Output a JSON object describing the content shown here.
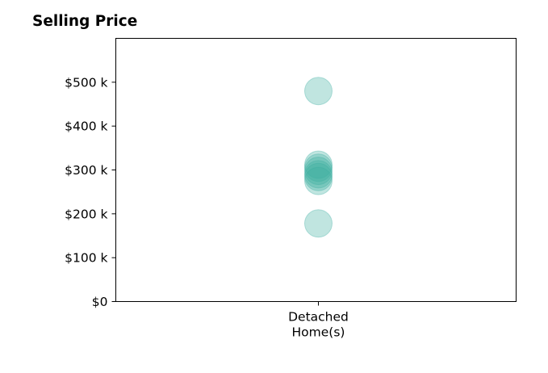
{
  "chart_data": {
    "type": "scatter",
    "title": "Selling Price",
    "xlabel": "",
    "ylabel": "",
    "categories": [
      "Detached\nHome(s)"
    ],
    "ylim": [
      0,
      600000
    ],
    "yticks": [
      0,
      100000,
      200000,
      300000,
      400000,
      500000
    ],
    "ytick_labels": [
      "$0",
      "$100 k",
      "$200 k",
      "$300 k",
      "$400 k",
      "$500 k"
    ],
    "grid": false,
    "points": [
      {
        "category": 0,
        "y": 480000
      },
      {
        "category": 0,
        "y": 312000
      },
      {
        "category": 0,
        "y": 305000
      },
      {
        "category": 0,
        "y": 298000
      },
      {
        "category": 0,
        "y": 290000
      },
      {
        "category": 0,
        "y": 284000
      },
      {
        "category": 0,
        "y": 275000
      },
      {
        "category": 0,
        "y": 178000
      }
    ],
    "colors": {
      "marker": "#3aada0",
      "axis": "#000000"
    }
  }
}
